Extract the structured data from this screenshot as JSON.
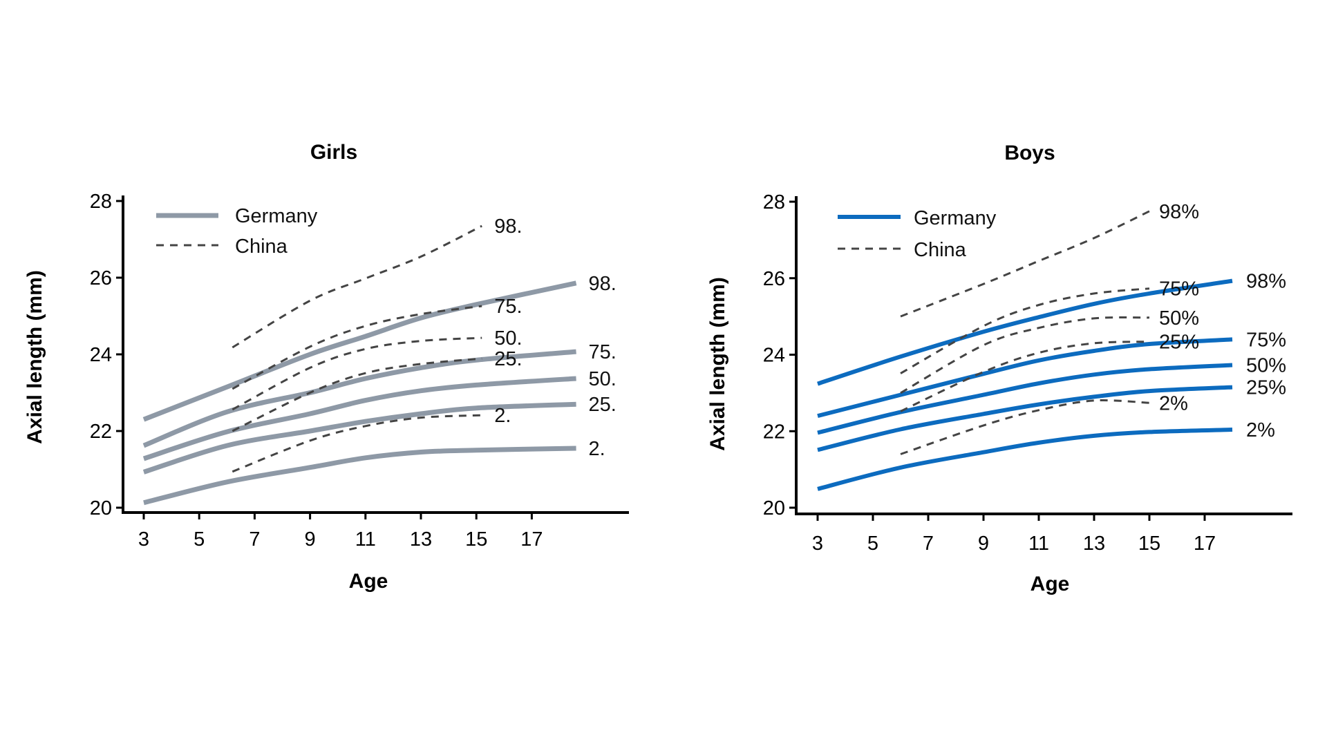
{
  "chart_data": [
    {
      "type": "line",
      "title": "Girls",
      "xlabel": "Age",
      "ylabel": "Axial length  (mm)",
      "xlim": [
        2.25,
        20.25
      ],
      "ylim": [
        20,
        28
      ],
      "xticks": [
        3,
        5,
        7,
        9,
        11,
        13,
        15,
        17
      ],
      "yticks": [
        20,
        22,
        24,
        26,
        28
      ],
      "grid": false,
      "legend": {
        "placement": "top-left",
        "entries": [
          {
            "label": "Germany",
            "style": "solid",
            "color": "#8e99a6"
          },
          {
            "label": "China",
            "style": "dashed",
            "color": "#444444"
          }
        ]
      },
      "series": [
        {
          "name": "Germany 98th",
          "group": "Germany",
          "end_label": "98.",
          "x": [
            3,
            6,
            9,
            11,
            13,
            15,
            18.6
          ],
          "values": [
            22.3,
            23.15,
            24.0,
            24.47,
            24.95,
            25.3,
            25.86
          ]
        },
        {
          "name": "Germany 75th",
          "group": "Germany",
          "end_label": "75.",
          "x": [
            3,
            6,
            9,
            11,
            13,
            15,
            18.6
          ],
          "values": [
            21.62,
            22.5,
            23.0,
            23.37,
            23.65,
            23.85,
            24.07
          ]
        },
        {
          "name": "Germany 50th",
          "group": "Germany",
          "end_label": "50.",
          "x": [
            3,
            6,
            9,
            11,
            13,
            15,
            18.6
          ],
          "values": [
            21.28,
            21.98,
            22.45,
            22.8,
            23.05,
            23.2,
            23.37
          ]
        },
        {
          "name": "Germany 25th",
          "group": "Germany",
          "end_label": "25.",
          "x": [
            3,
            6,
            9,
            11,
            13,
            15,
            18.6
          ],
          "values": [
            20.93,
            21.62,
            22.0,
            22.25,
            22.45,
            22.6,
            22.7
          ]
        },
        {
          "name": "Germany 2nd",
          "group": "Germany",
          "end_label": "2.",
          "x": [
            3,
            6,
            9,
            11,
            13,
            15,
            18.6
          ],
          "values": [
            20.13,
            20.67,
            21.05,
            21.3,
            21.45,
            21.5,
            21.55
          ]
        },
        {
          "name": "China 98th",
          "group": "China",
          "end_label": "98.",
          "x": [
            6.2,
            9,
            11,
            13,
            15.2
          ],
          "values": [
            24.18,
            25.4,
            25.98,
            26.55,
            27.35
          ]
        },
        {
          "name": "China 75th",
          "group": "China",
          "end_label": "75.",
          "x": [
            6.2,
            9,
            11,
            13,
            15.2
          ],
          "values": [
            23.1,
            24.2,
            24.74,
            25.05,
            25.26
          ]
        },
        {
          "name": "China 50th",
          "group": "China",
          "end_label": "50.",
          "x": [
            6.2,
            9,
            11,
            13,
            15.2
          ],
          "values": [
            22.56,
            23.65,
            24.14,
            24.35,
            24.43
          ]
        },
        {
          "name": "China 25th",
          "group": "China",
          "end_label": "25.",
          "x": [
            6.2,
            9,
            11,
            13,
            15.2
          ],
          "values": [
            22.0,
            23.0,
            23.51,
            23.75,
            23.89
          ]
        },
        {
          "name": "China 2nd",
          "group": "China",
          "end_label": "2.",
          "x": [
            6.2,
            9,
            11,
            13,
            15.2
          ],
          "values": [
            20.94,
            21.75,
            22.13,
            22.35,
            22.41
          ]
        }
      ]
    },
    {
      "type": "line",
      "title": "Boys",
      "xlabel": "Age",
      "ylabel": "Axial length (mm)",
      "xlim": [
        2.2,
        20.0
      ],
      "ylim": [
        20,
        28
      ],
      "xticks": [
        3,
        5,
        7,
        9,
        11,
        13,
        15,
        17
      ],
      "yticks": [
        20,
        22,
        24,
        26,
        28
      ],
      "grid": false,
      "legend": {
        "placement": "top-left",
        "entries": [
          {
            "label": "Germany",
            "style": "solid",
            "color": "#0c6bbf"
          },
          {
            "label": "China",
            "style": "dashed",
            "color": "#444444"
          }
        ]
      },
      "series": [
        {
          "name": "Germany 98th",
          "group": "Germany",
          "end_label": "98%",
          "x": [
            3,
            6,
            9,
            11,
            13,
            15,
            18
          ],
          "values": [
            23.24,
            23.95,
            24.6,
            24.98,
            25.33,
            25.6,
            25.93
          ]
        },
        {
          "name": "Germany 75th",
          "group": "Germany",
          "end_label": "75%",
          "x": [
            3,
            6,
            9,
            11,
            13,
            15,
            18
          ],
          "values": [
            22.4,
            22.95,
            23.5,
            23.85,
            24.1,
            24.28,
            24.4
          ]
        },
        {
          "name": "Germany 50th",
          "group": "Germany",
          "end_label": "50%",
          "x": [
            3,
            6,
            9,
            11,
            13,
            15,
            18
          ],
          "values": [
            21.96,
            22.5,
            22.95,
            23.25,
            23.48,
            23.62,
            23.73
          ]
        },
        {
          "name": "Germany 25th",
          "group": "Germany",
          "end_label": "25%",
          "x": [
            3,
            6,
            9,
            11,
            13,
            15,
            18
          ],
          "values": [
            21.51,
            22.05,
            22.45,
            22.7,
            22.9,
            23.05,
            23.15
          ]
        },
        {
          "name": "Germany 2nd",
          "group": "Germany",
          "end_label": "2%",
          "x": [
            3,
            6,
            9,
            11,
            13,
            15,
            18
          ],
          "values": [
            20.49,
            21.05,
            21.45,
            21.7,
            21.88,
            21.98,
            22.04
          ]
        },
        {
          "name": "China 98th",
          "group": "China",
          "end_label": "98%",
          "x": [
            6,
            9,
            11,
            13,
            15
          ],
          "values": [
            25.0,
            25.85,
            26.45,
            27.05,
            27.75
          ]
        },
        {
          "name": "China 75th",
          "group": "China",
          "end_label": "75%",
          "x": [
            6,
            9,
            11,
            13,
            15
          ],
          "values": [
            23.51,
            24.75,
            25.3,
            25.6,
            25.73
          ]
        },
        {
          "name": "China 50th",
          "group": "China",
          "end_label": "50%",
          "x": [
            6,
            9,
            11,
            13,
            15
          ],
          "values": [
            23.0,
            24.25,
            24.7,
            24.95,
            24.97
          ]
        },
        {
          "name": "China 25th",
          "group": "China",
          "end_label": "25%",
          "x": [
            6,
            9,
            11,
            13,
            15
          ],
          "values": [
            22.52,
            23.55,
            24.05,
            24.3,
            24.34
          ]
        },
        {
          "name": "China 2nd",
          "group": "China",
          "end_label": "2%",
          "x": [
            6,
            9,
            11,
            13,
            15
          ],
          "values": [
            21.4,
            22.15,
            22.55,
            22.8,
            22.74
          ]
        }
      ]
    }
  ]
}
